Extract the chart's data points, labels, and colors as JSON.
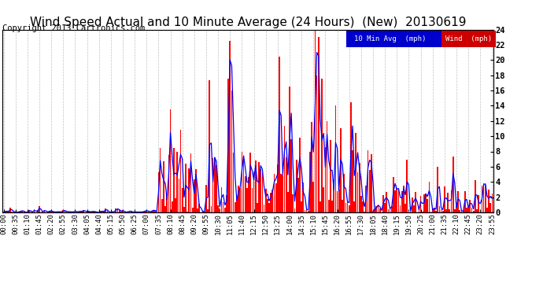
{
  "title": "Wind Speed Actual and 10 Minute Average (24 Hours)  (New)  20130619",
  "copyright": "Copyright 2013 Cartronics.com",
  "legend_avg_label": "10 Min Avg  (mph)",
  "legend_wind_label": "Wind  (mph)",
  "legend_avg_bg": "#0000cc",
  "legend_wind_bg": "#cc0000",
  "ylim": [
    0,
    24.0
  ],
  "yticks": [
    0.0,
    2.0,
    4.0,
    6.0,
    8.0,
    10.0,
    12.0,
    14.0,
    16.0,
    18.0,
    20.0,
    22.0,
    24.0
  ],
  "background_color": "#ffffff",
  "plot_bg": "#ffffff",
  "grid_color": "#999999",
  "bar_color": "#ff0000",
  "avg_line_color": "#0000ff",
  "baseline_color": "#0000ff",
  "title_fontsize": 11,
  "copyright_fontsize": 7.5,
  "tick_fontsize": 6.5
}
